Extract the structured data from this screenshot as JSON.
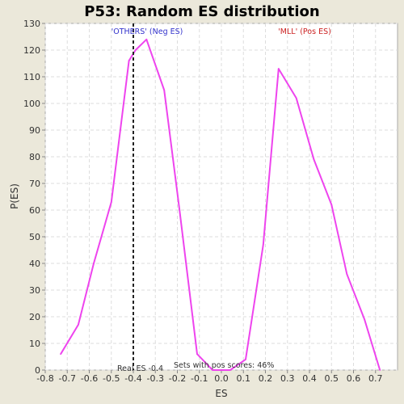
{
  "chart_data": {
    "type": "line",
    "title": "P53: Random ES distribution",
    "xlabel": "ES",
    "ylabel": "P(ES)",
    "xlim": [
      -0.8,
      0.8
    ],
    "ylim": [
      0,
      130
    ],
    "x_ticks": [
      -0.8,
      -0.7,
      -0.6,
      -0.5,
      -0.4,
      -0.3,
      -0.2,
      -0.1,
      0.0,
      0.1,
      0.2,
      0.3,
      0.4,
      0.5,
      0.6,
      0.7
    ],
    "y_ticks": [
      0,
      10,
      20,
      30,
      40,
      50,
      60,
      70,
      80,
      90,
      100,
      110,
      120,
      130
    ],
    "grid": true,
    "series": [
      {
        "color": "#ee44ee",
        "x": [
          -0.73,
          -0.65,
          -0.58,
          -0.5,
          -0.42,
          -0.39,
          -0.34,
          -0.26,
          -0.19,
          -0.11,
          -0.04,
          0.04,
          0.11,
          0.19,
          0.26,
          0.34,
          0.42,
          0.5,
          0.57,
          0.65,
          0.72
        ],
        "y": [
          6,
          17,
          40,
          63,
          116,
          120,
          124,
          105,
          60,
          6,
          0,
          0,
          4,
          47,
          113,
          102,
          79,
          62,
          36,
          19,
          0
        ]
      }
    ],
    "vline": {
      "x": -0.4,
      "style": "dashed",
      "color": "#222222"
    },
    "annotations": {
      "neg_label": "'OTHERS' (Neg ES)",
      "neg_color": "#3333cc",
      "pos_label": "'MLL' (Pos ES)",
      "pos_color": "#cc2222",
      "real_es": "Real ES -0.4",
      "pos_scores": "Sets with pos scores: 46%"
    }
  },
  "colors": {
    "background": "#ebe8da",
    "plot_background": "#ffffff",
    "grid": "#dddddd",
    "axis": "#888888"
  }
}
